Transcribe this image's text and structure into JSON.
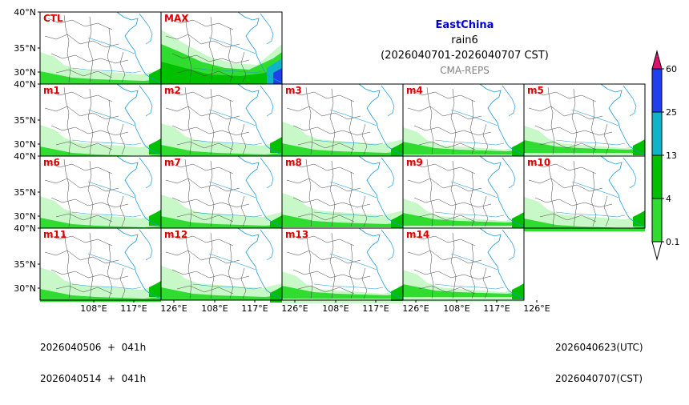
{
  "header": {
    "region": "EastChina",
    "variable": "rain6",
    "period": "(2026040701-2026040707 CST)",
    "source": "CMA-REPS"
  },
  "colors": {
    "title": "#0000d0",
    "source": "#808080",
    "label": "#e00000",
    "coast": "#1e9ad6",
    "border": "#444444"
  },
  "axes": {
    "lat_ticks": [
      "40°N",
      "35°N",
      "30°N"
    ],
    "lon_ticks": [
      "108°E",
      "117°E",
      "126°E"
    ]
  },
  "panels": [
    {
      "name": "CTL",
      "row": 0,
      "col": 0
    },
    {
      "name": "MAX",
      "row": 0,
      "col": 1
    },
    {
      "name": "m1",
      "row": 1,
      "col": 0
    },
    {
      "name": "m2",
      "row": 1,
      "col": 1
    },
    {
      "name": "m3",
      "row": 1,
      "col": 2
    },
    {
      "name": "m4",
      "row": 1,
      "col": 3
    },
    {
      "name": "m5",
      "row": 1,
      "col": 4
    },
    {
      "name": "m6",
      "row": 2,
      "col": 0
    },
    {
      "name": "m7",
      "row": 2,
      "col": 1
    },
    {
      "name": "m8",
      "row": 2,
      "col": 2
    },
    {
      "name": "m9",
      "row": 2,
      "col": 3
    },
    {
      "name": "m10",
      "row": 2,
      "col": 4
    },
    {
      "name": "m11",
      "row": 3,
      "col": 0
    },
    {
      "name": "m12",
      "row": 3,
      "col": 1
    },
    {
      "name": "m13",
      "row": 3,
      "col": 2
    },
    {
      "name": "m14",
      "row": 3,
      "col": 3
    }
  ],
  "colorbar": {
    "levels": [
      "60",
      "25",
      "13",
      "4",
      "0.1"
    ],
    "colors": [
      "#e0106e",
      "#2040f0",
      "#10b4c8",
      "#00c000",
      "#30dc30",
      "#c8f8c8"
    ]
  },
  "footer": {
    "left_line1": "2026040506  +  041h",
    "left_line2": "2026040514  +  041h",
    "right_line1": "2026040623(UTC)",
    "right_line2": "2026040707(CST)"
  }
}
